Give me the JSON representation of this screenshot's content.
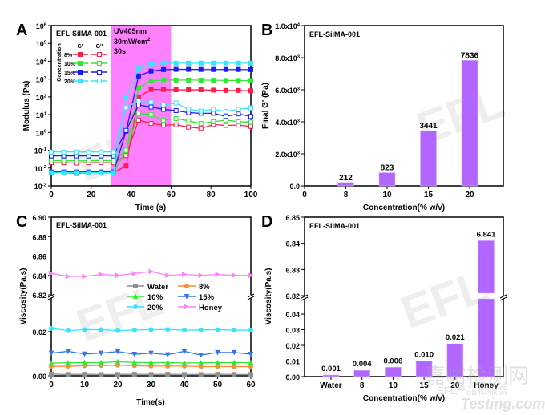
{
  "chart_data": [
    {
      "panel": "A",
      "type": "line",
      "title": "EFL-SilMA-001",
      "xlabel": "Time (s)",
      "ylabel": "Modulus (Pa)",
      "xlim": [
        0,
        100
      ],
      "ylim_log10": [
        -3,
        6
      ],
      "yscale": "log",
      "xticks": [
        "0",
        "20",
        "40",
        "60",
        "80",
        "100"
      ],
      "yticks": [
        "10-3",
        "10-2",
        "10-1",
        "100",
        "101",
        "102",
        "103",
        "104",
        "105",
        "106"
      ],
      "annotation": [
        "UV405nm",
        "30mW/cm2",
        "30s"
      ],
      "uv_window": [
        30,
        60
      ],
      "uv_color": "#ff80ff",
      "legend": {
        "title": "Concentration",
        "col1": "G'",
        "col2": "G''",
        "placement": "top-left"
      },
      "x": [
        0,
        6.25,
        12.5,
        18.75,
        25,
        31.25,
        37.5,
        43.75,
        50,
        56.25,
        62.5,
        68.75,
        75,
        81.25,
        87.5,
        93.75,
        100
      ],
      "series": [
        {
          "name": "8%",
          "color": "#ff1a4a",
          "Gp": [
            0.0055,
            0.0055,
            0.005,
            0.0055,
            0.0055,
            0.0055,
            0.013,
            100,
            260,
            260,
            250,
            250,
            250,
            240,
            230,
            230,
            220
          ],
          "Gpp": [
            0.02,
            0.02,
            0.019,
            0.02,
            0.02,
            0.02,
            0.05,
            5,
            3.2,
            2.6,
            2.7,
            2.0,
            1.7,
            2.8,
            2.5,
            2.6,
            2.2
          ]
        },
        {
          "name": "10%",
          "color": "#33e633",
          "Gp": [
            0.006,
            0.006,
            0.006,
            0.006,
            0.006,
            0.006,
            0.09,
            330,
            800,
            900,
            880,
            880,
            870,
            860,
            840,
            840,
            830
          ],
          "Gpp": [
            0.026,
            0.026,
            0.025,
            0.026,
            0.026,
            0.026,
            0.1,
            12,
            10,
            5,
            6,
            4.5,
            3.2,
            4,
            5,
            4,
            3.8
          ]
        },
        {
          "name": "15%",
          "color": "#1a1aff",
          "Gp": [
            0.006,
            0.006,
            0.006,
            0.006,
            0.006,
            0.006,
            1.2,
            1500,
            2800,
            3400,
            3500,
            3500,
            3450,
            3450,
            3450,
            3450,
            3400
          ],
          "Gpp": [
            0.048,
            0.048,
            0.048,
            0.048,
            0.048,
            0.048,
            1.3,
            35,
            27,
            20,
            17,
            13,
            12,
            12,
            8,
            11,
            8
          ]
        },
        {
          "name": "20%",
          "color": "#33e6ff",
          "Gp": [
            0.0055,
            0.0055,
            0.0055,
            0.0055,
            0.0055,
            0.0055,
            90,
            4000,
            6500,
            7800,
            7800,
            7800,
            7800,
            7800,
            7800,
            7800,
            7800
          ],
          "Gpp": [
            0.08,
            0.08,
            0.08,
            0.08,
            0.08,
            0.08,
            25,
            60,
            50,
            35,
            45,
            20,
            16,
            20,
            15,
            20,
            24
          ]
        }
      ]
    },
    {
      "panel": "B",
      "type": "bar",
      "title": "EFL-SilMA-001",
      "xlabel": "Concentration(% w/v)",
      "ylabel": "Final G' (Pa)",
      "xlim": [
        0,
        24
      ],
      "ylim": [
        0,
        10000
      ],
      "xticks": [
        "0",
        "8",
        "10",
        "15",
        "20"
      ],
      "yticks": [
        "0.0",
        "2.0x103",
        "4.0x103",
        "6.0x103",
        "8.0x103",
        "1.0x104"
      ],
      "categories": [
        "8",
        "10",
        "15",
        "20"
      ],
      "values": [
        212,
        823,
        3441,
        7836
      ],
      "value_labels": [
        "212",
        "823",
        "3441",
        "7836"
      ],
      "bar_color": "#b066ff"
    },
    {
      "panel": "C",
      "type": "line",
      "title": "EFL-SilMA-001",
      "xlabel": "Time(s)",
      "ylabel": "Viscosity(Pa.s)",
      "xlim": [
        0,
        60
      ],
      "y_break": true,
      "ylim_lower": [
        0,
        0.03
      ],
      "ylim_upper": [
        6.82,
        6.9
      ],
      "xticks": [
        "0",
        "10",
        "20",
        "30",
        "40",
        "50",
        "60"
      ],
      "yticks_lower": [
        "0.00",
        "0.02"
      ],
      "yticks_upper": [
        "6.82",
        "6.84",
        "6.86",
        "6.88",
        "6.90"
      ],
      "legend_placement": "center",
      "x": [
        0,
        5,
        10,
        15,
        20,
        25,
        30,
        35,
        40,
        45,
        50,
        55,
        60
      ],
      "series": [
        {
          "name": "Water",
          "color": "#909090",
          "marker": "square",
          "values": [
            0.0008,
            0.0006,
            0.0007,
            0.0006,
            0.0006,
            0.0007,
            0.0006,
            0.0007,
            0.0006,
            0.0006,
            0.0007,
            0.0006,
            0.0006
          ]
        },
        {
          "name": "8%",
          "color": "#ff8c33",
          "marker": "circle",
          "values": [
            0.0043,
            0.0043,
            0.0046,
            0.0047,
            0.0048,
            0.0046,
            0.0044,
            0.0044,
            0.0044,
            0.0042,
            0.0042,
            0.0042,
            0.0042
          ]
        },
        {
          "name": "10%",
          "color": "#33e633",
          "marker": "triangle-up",
          "values": [
            0.0058,
            0.0059,
            0.006,
            0.006,
            0.0064,
            0.0061,
            0.006,
            0.006,
            0.0058,
            0.0059,
            0.006,
            0.006,
            0.006
          ]
        },
        {
          "name": "15%",
          "color": "#3377e6",
          "marker": "triangle-down",
          "values": [
            0.0103,
            0.0111,
            0.0099,
            0.0103,
            0.011,
            0.0098,
            0.0103,
            0.0096,
            0.0111,
            0.0094,
            0.0106,
            0.0106,
            0.0098
          ]
        },
        {
          "name": "20%",
          "color": "#33e6ff",
          "marker": "circle",
          "values": [
            0.0215,
            0.0205,
            0.0209,
            0.0209,
            0.0205,
            0.0208,
            0.0209,
            0.021,
            0.0207,
            0.0208,
            0.0209,
            0.0207,
            0.0207
          ]
        },
        {
          "name": "Honey",
          "color": "#ff80ff",
          "marker": "triangle-right",
          "values": [
            6.842,
            6.839,
            6.839,
            6.841,
            6.84,
            6.842,
            6.844,
            6.84,
            6.841,
            6.84,
            6.841,
            6.84,
            6.84
          ]
        }
      ]
    },
    {
      "panel": "D",
      "type": "bar",
      "title": "EFL-SilMA-001",
      "xlabel": "Concentration(% w/v)",
      "ylabel": "Viscosity(Pa.s)",
      "y_break": true,
      "ylim_lower": [
        0,
        0.05
      ],
      "ylim_upper": [
        6.82,
        6.85
      ],
      "yticks_lower": [
        "0.00",
        "0.01",
        "0.02",
        "0.03",
        "0.04"
      ],
      "yticks_upper": [
        "6.82",
        "6.83",
        "6.84",
        "6.85"
      ],
      "categories": [
        "Water",
        "8",
        "10",
        "15",
        "20",
        "Honey"
      ],
      "values": [
        0.001,
        0.004,
        0.006,
        0.01,
        0.021,
        6.841
      ],
      "value_labels": [
        "0.001",
        "0.004",
        "0.006",
        "0.010",
        "0.021",
        "6.841"
      ],
      "bar_color": "#b066ff"
    }
  ],
  "panel_letters": [
    "A",
    "B",
    "C",
    "D"
  ],
  "watermarks": {
    "main": "EFL",
    "corner_cn": "嘉峪检测网",
    "corner_sub_cn": "EFL产品和服务",
    "corner_en": "Testing.com"
  }
}
